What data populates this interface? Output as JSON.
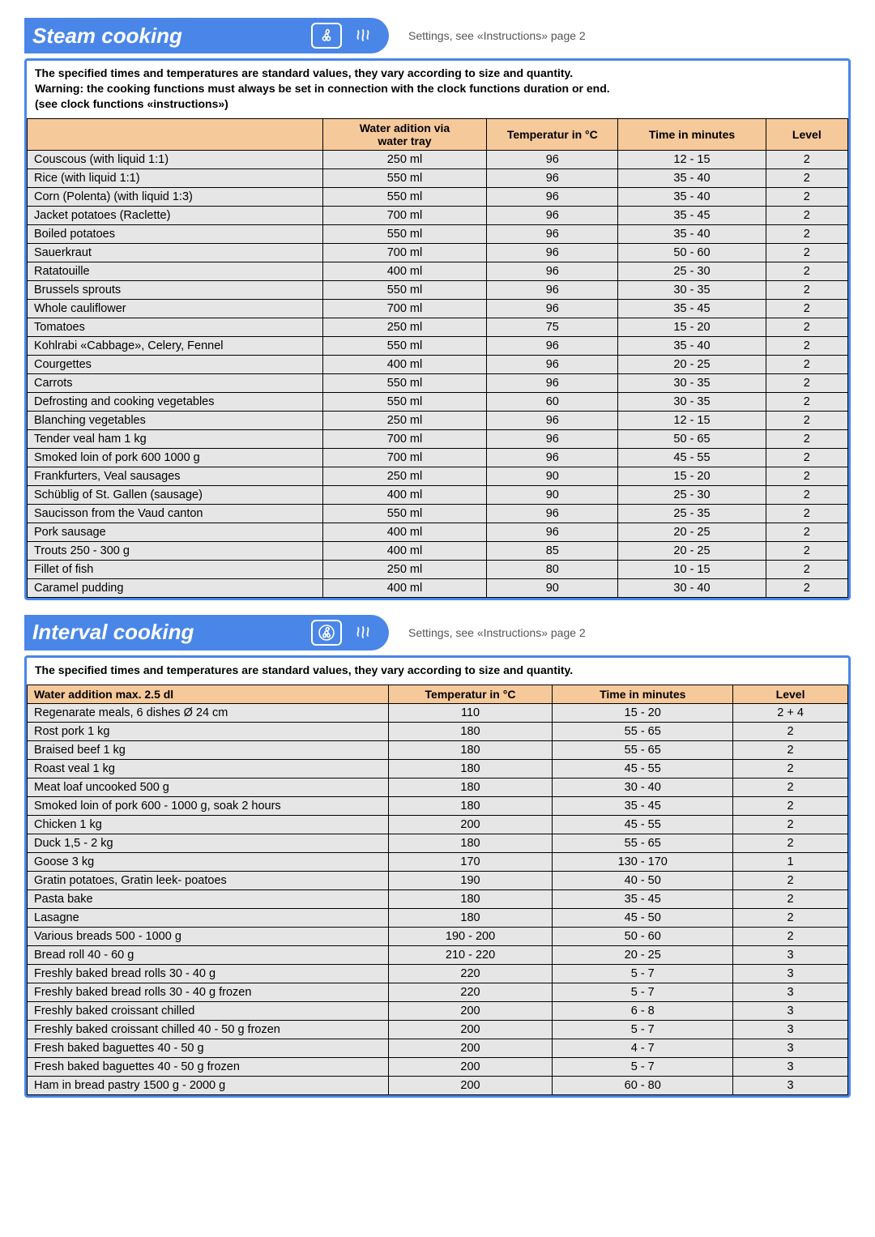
{
  "settings_note": "Settings, see «Instructions» page 2",
  "steam": {
    "title": "Steam cooking",
    "warning": "The specified times and temperatures are standard values, they vary according to size and quantity.\nWarning: the cooking functions must always be set in connection with the clock functions duration or end.\n(see clock functions «instructions»)",
    "columns": [
      "",
      "Water adition via water tray",
      "Temperatur in °C",
      "Time in minutes",
      "Level"
    ],
    "rows": [
      [
        "Couscous (with liquid 1:1)",
        "250 ml",
        "96",
        "12 - 15",
        "2"
      ],
      [
        "Rice (with liquid 1:1)",
        "550 ml",
        "96",
        "35 - 40",
        "2"
      ],
      [
        "Corn (Polenta) (with liquid 1:3)",
        "550 ml",
        "96",
        "35 - 40",
        "2"
      ],
      [
        "Jacket potatoes (Raclette)",
        "700 ml",
        "96",
        "35 - 45",
        "2"
      ],
      [
        "Boiled potatoes",
        "550 ml",
        "96",
        "35 - 40",
        "2"
      ],
      [
        "Sauerkraut",
        "700 ml",
        "96",
        "50 - 60",
        "2"
      ],
      [
        "Ratatouille",
        "400 ml",
        "96",
        "25 - 30",
        "2"
      ],
      [
        "Brussels sprouts",
        "550 ml",
        "96",
        "30 - 35",
        "2"
      ],
      [
        "Whole cauliflower",
        "700 ml",
        "96",
        "35 - 45",
        "2"
      ],
      [
        "Tomatoes",
        "250 ml",
        "75",
        "15 - 20",
        "2"
      ],
      [
        "Kohlrabi «Cabbage», Celery, Fennel",
        "550 ml",
        "96",
        "35 - 40",
        "2"
      ],
      [
        "Courgettes",
        "400 ml",
        "96",
        "20 - 25",
        "2"
      ],
      [
        "Carrots",
        "550 ml",
        "96",
        "30 - 35",
        "2"
      ],
      [
        "Defrosting and cooking vegetables",
        "550 ml",
        "60",
        "30 - 35",
        "2"
      ],
      [
        "Blanching vegetables",
        "250 ml",
        "96",
        "12 - 15",
        "2"
      ],
      [
        "Tender veal ham 1 kg",
        "700 ml",
        "96",
        "50 - 65",
        "2"
      ],
      [
        "Smoked loin of pork 600 1000 g",
        "700 ml",
        "96",
        "45 - 55",
        "2"
      ],
      [
        "Frankfurters, Veal sausages",
        "250 ml",
        "90",
        "15 - 20",
        "2"
      ],
      [
        "Schüblig of St. Gallen (sausage)",
        "400 ml",
        "90",
        "25 - 30",
        "2"
      ],
      [
        "Saucisson from the Vaud canton",
        "550 ml",
        "96",
        "25 - 35",
        "2"
      ],
      [
        "Pork sausage",
        "400 ml",
        "96",
        "20 - 25",
        "2"
      ],
      [
        "Trouts 250 - 300 g",
        "400 ml",
        "85",
        "20 - 25",
        "2"
      ],
      [
        "Fillet of fish",
        "250 ml",
        "80",
        "10 - 15",
        "2"
      ],
      [
        "Caramel pudding",
        "400 ml",
        "90",
        "30 - 40",
        "2"
      ]
    ]
  },
  "interval": {
    "title": "Interval cooking",
    "warning": "The specified times and temperatures are standard values, they vary according to size and quantity.",
    "columns": [
      "Water addition max. 2.5 dl",
      "Temperatur in °C",
      "Time in minutes",
      "Level"
    ],
    "rows": [
      [
        "Regenarate meals, 6 dishes Ø 24 cm",
        "110",
        "15 - 20",
        "2 + 4"
      ],
      [
        "Rost pork 1 kg",
        "180",
        "55 - 65",
        "2"
      ],
      [
        "Braised beef 1 kg",
        "180",
        "55 - 65",
        "2"
      ],
      [
        "Roast veal 1 kg",
        "180",
        "45 - 55",
        "2"
      ],
      [
        "Meat loaf uncooked 500 g",
        "180",
        "30 - 40",
        "2"
      ],
      [
        "Smoked loin of pork 600 - 1000 g, soak 2 hours",
        "180",
        "35 - 45",
        "2"
      ],
      [
        "Chicken 1 kg",
        "200",
        "45 - 55",
        "2"
      ],
      [
        "Duck 1,5 - 2 kg",
        "180",
        "55 - 65",
        "2"
      ],
      [
        "Goose 3 kg",
        "170",
        "130 - 170",
        "1"
      ],
      [
        "Gratin potatoes, Gratin leek- poatoes",
        "190",
        "40 - 50",
        "2"
      ],
      [
        "Pasta bake",
        "180",
        "35 - 45",
        "2"
      ],
      [
        "Lasagne",
        "180",
        "45 - 50",
        "2"
      ],
      [
        "Various breads 500 - 1000 g",
        "190 - 200",
        "50 - 60",
        "2"
      ],
      [
        "Bread roll 40 - 60 g",
        "210 - 220",
        "20 - 25",
        "3"
      ],
      [
        "Freshly baked bread rolls 30 - 40 g",
        "220",
        "5 - 7",
        "3"
      ],
      [
        "Freshly baked bread rolls 30 - 40 g frozen",
        "220",
        "5 - 7",
        "3"
      ],
      [
        "Freshly baked croissant chilled",
        "200",
        "6 - 8",
        "3"
      ],
      [
        "Freshly baked croissant chilled 40 - 50 g frozen",
        "200",
        "5 - 7",
        "3"
      ],
      [
        "Fresh baked baguettes  40 - 50 g",
        "200",
        "4 - 7",
        "3"
      ],
      [
        "Fresh baked baguettes  40 - 50 g frozen",
        "200",
        "5 - 7",
        "3"
      ],
      [
        "Ham in bread pastry 1500 g - 2000 g",
        "200",
        "60 - 80",
        "3"
      ]
    ]
  }
}
